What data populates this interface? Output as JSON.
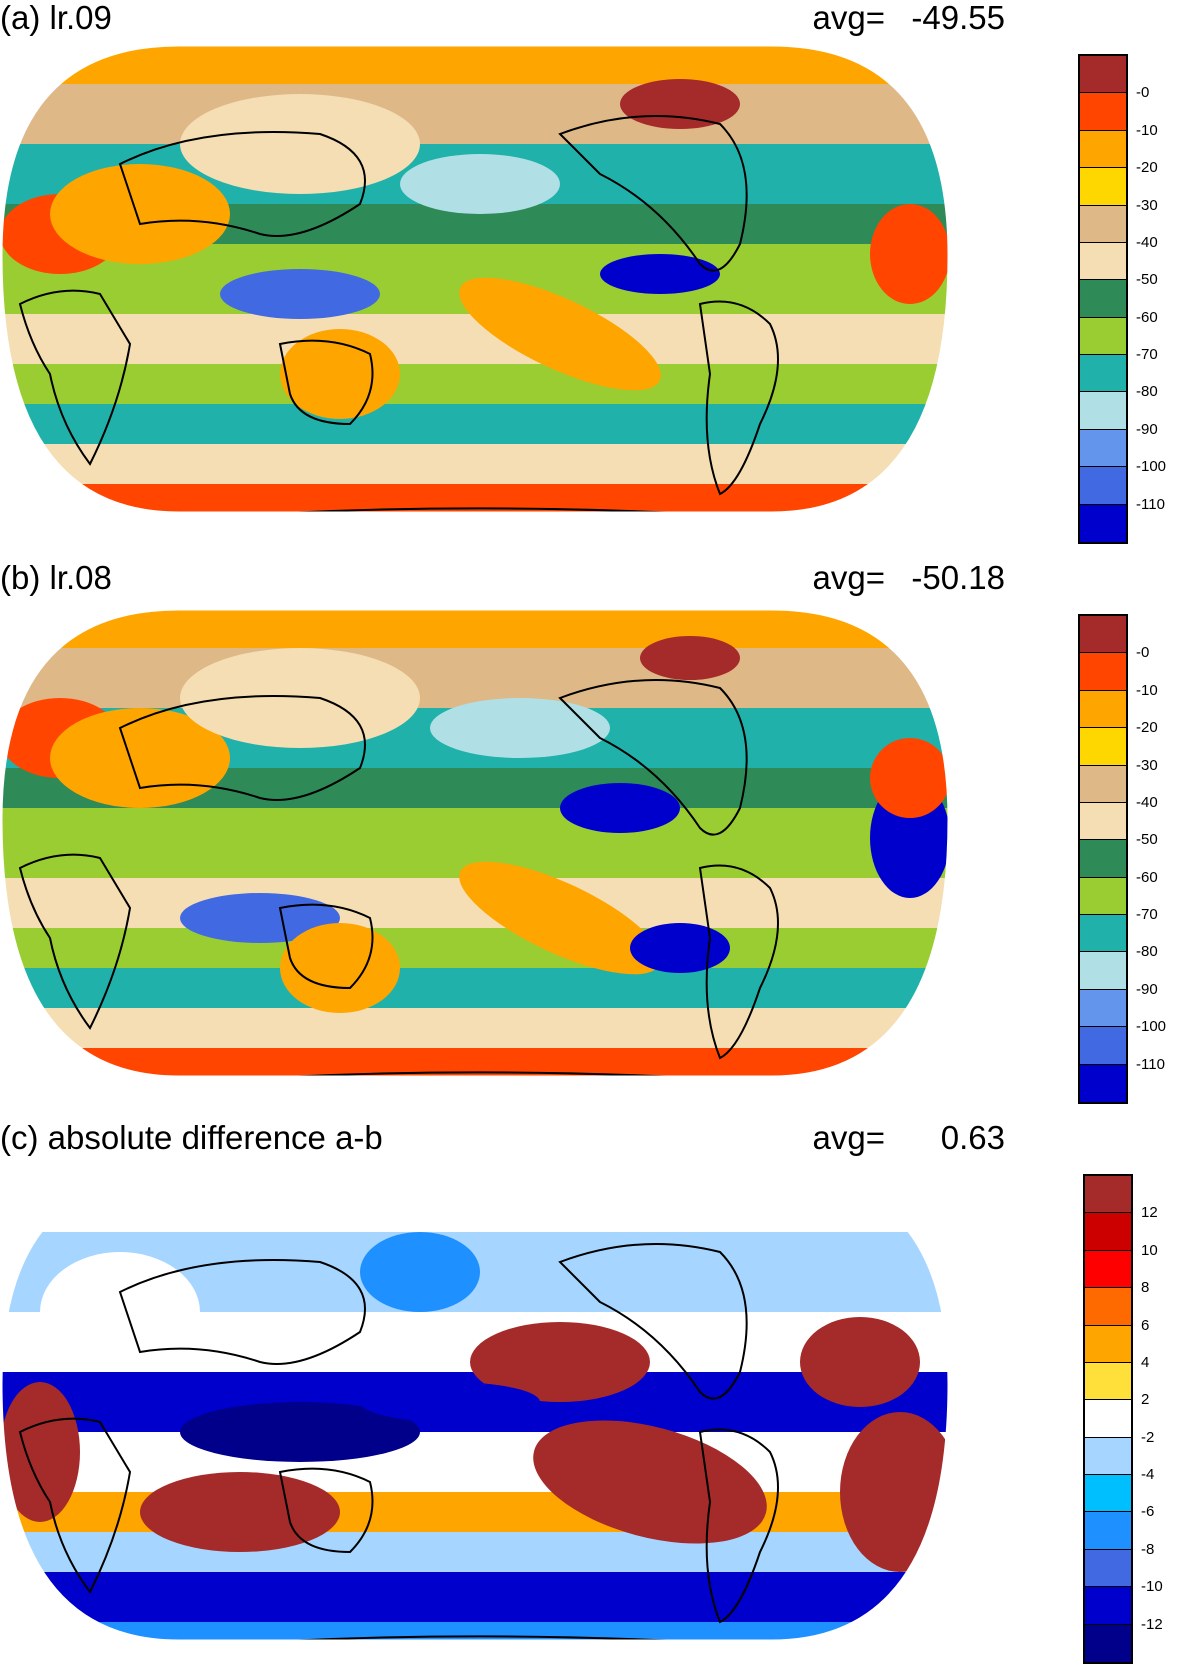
{
  "panels": [
    {
      "title": "(a) lr.09",
      "avg_label": "avg=",
      "avg_value": "-49.55",
      "colorbar": {
        "colors": [
          "#a52a2a",
          "#ff4500",
          "#ffa500",
          "#ffd700",
          "#deb887",
          "#f5deb3",
          "#2e8b57",
          "#9acd32",
          "#20b2aa",
          "#b0e0e6",
          "#6495ed",
          "#4169e1",
          "#0000cd"
        ],
        "labels": [
          "-0",
          "-10",
          "-20",
          "-30",
          "-40",
          "-50",
          "-60",
          "-70",
          "-80",
          "-90",
          "-100",
          "-110"
        ]
      }
    },
    {
      "title": "(b) lr.08",
      "avg_label": "avg=",
      "avg_value": "-50.18",
      "colorbar": {
        "colors": [
          "#a52a2a",
          "#ff4500",
          "#ffa500",
          "#ffd700",
          "#deb887",
          "#f5deb3",
          "#2e8b57",
          "#9acd32",
          "#20b2aa",
          "#b0e0e6",
          "#6495ed",
          "#4169e1",
          "#0000cd"
        ],
        "labels": [
          "-0",
          "-10",
          "-20",
          "-30",
          "-40",
          "-50",
          "-60",
          "-70",
          "-80",
          "-90",
          "-100",
          "-110"
        ]
      }
    },
    {
      "title": "(c) absolute difference a-b",
      "avg_label": "avg=",
      "avg_value": "0.63",
      "colorbar": {
        "colors": [
          "#a52a2a",
          "#cd0000",
          "#ff0000",
          "#ff6a00",
          "#ffa500",
          "#ffdf3a",
          "#ffffff",
          "#a6d6ff",
          "#00bfff",
          "#1e90ff",
          "#4169e1",
          "#0000cd",
          "#00008b"
        ],
        "labels": [
          "12",
          "10",
          "8",
          "6",
          "4",
          "2",
          "-2",
          "-4",
          "-6",
          "-8",
          "-10",
          "-12"
        ]
      }
    }
  ]
}
